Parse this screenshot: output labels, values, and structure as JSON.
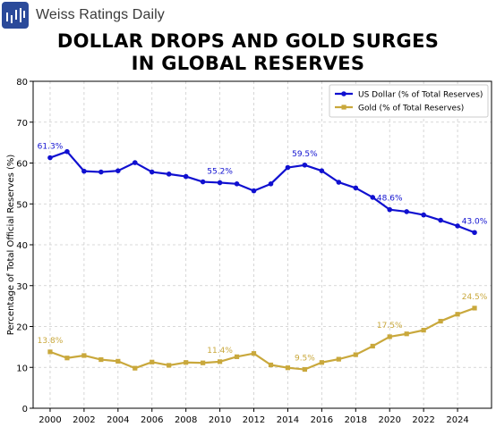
{
  "brand": {
    "name": "Weiss Ratings Daily",
    "logo_icon": "bar-chart-logo-icon",
    "logo_color": "#2b4a9a"
  },
  "title_lines": [
    "DOLLAR DROPS AND GOLD SURGES",
    "IN GLOBAL RESERVES"
  ],
  "chart_data": {
    "type": "line",
    "xlabel": "",
    "ylabel": "Percentage of Total Official Reserves (%)",
    "xlim": [
      1999,
      2026
    ],
    "ylim": [
      0,
      80
    ],
    "xticks": [
      2000,
      2002,
      2004,
      2006,
      2008,
      2010,
      2012,
      2014,
      2016,
      2018,
      2020,
      2022,
      2024
    ],
    "yticks": [
      0,
      10,
      20,
      30,
      40,
      50,
      60,
      70,
      80
    ],
    "grid": true,
    "legend_position": "top-right",
    "x": [
      2000,
      2001,
      2002,
      2003,
      2004,
      2005,
      2006,
      2007,
      2008,
      2009,
      2010,
      2011,
      2012,
      2013,
      2014,
      2015,
      2016,
      2017,
      2018,
      2019,
      2020,
      2021,
      2022,
      2023,
      2024,
      2025
    ],
    "series": [
      {
        "name": "US Dollar (% of Total Reserves)",
        "color": "#1010d0",
        "marker": "circle",
        "values": [
          61.3,
          62.8,
          58.0,
          57.8,
          58.1,
          60.1,
          57.8,
          57.3,
          56.7,
          55.4,
          55.2,
          54.9,
          53.2,
          54.9,
          58.9,
          59.5,
          58.1,
          55.3,
          53.9,
          51.6,
          48.6,
          48.1,
          47.3,
          46.0,
          44.6,
          43.0
        ],
        "annotations": [
          {
            "x": 2000,
            "y": 61.3,
            "text": "61.3%"
          },
          {
            "x": 2010,
            "y": 55.2,
            "text": "55.2%"
          },
          {
            "x": 2015,
            "y": 59.5,
            "text": "59.5%"
          },
          {
            "x": 2020,
            "y": 48.6,
            "text": "48.6%"
          },
          {
            "x": 2025,
            "y": 43.0,
            "text": "43.0%"
          }
        ]
      },
      {
        "name": "Gold (% of Total Reserves)",
        "color": "#c9a83c",
        "marker": "square",
        "values": [
          13.8,
          12.3,
          12.9,
          11.9,
          11.5,
          9.8,
          11.3,
          10.5,
          11.2,
          11.1,
          11.4,
          12.6,
          13.4,
          10.6,
          9.9,
          9.5,
          11.2,
          12.0,
          13.1,
          15.2,
          17.5,
          18.2,
          19.1,
          21.3,
          23.0,
          24.5
        ],
        "annotations": [
          {
            "x": 2000,
            "y": 13.8,
            "text": "13.8%"
          },
          {
            "x": 2010,
            "y": 11.4,
            "text": "11.4%"
          },
          {
            "x": 2015,
            "y": 9.5,
            "text": "9.5%"
          },
          {
            "x": 2020,
            "y": 17.5,
            "text": "17.5%"
          },
          {
            "x": 2025,
            "y": 24.5,
            "text": "24.5%"
          }
        ]
      }
    ]
  }
}
